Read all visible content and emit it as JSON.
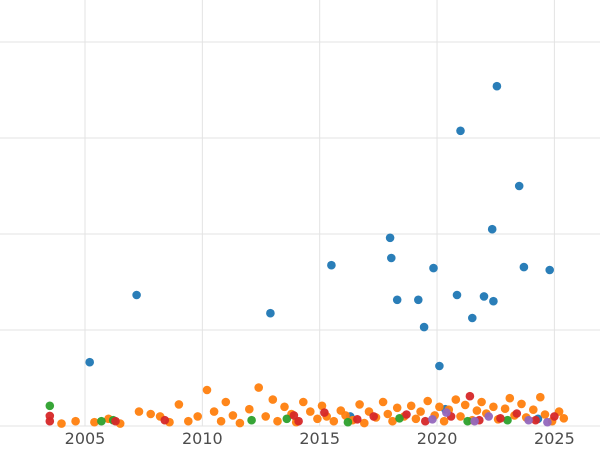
{
  "chart_data": {
    "type": "scatter",
    "title": "",
    "xlabel": "",
    "ylabel": "",
    "grid": true,
    "legend": "none",
    "x_axis": {
      "ticks": [
        2005,
        2010,
        2015,
        2020,
        2025
      ],
      "tick_labels": [
        "2005",
        "2010",
        "2015",
        "2020",
        "2025"
      ],
      "range": [
        2003.2,
        2026.2
      ]
    },
    "y_axis": {
      "gridline_values": [
        0,
        20,
        40,
        60,
        80
      ],
      "tick_labels": [],
      "range": [
        0,
        88
      ],
      "note": "y tick labels are cropped out of the visible image"
    },
    "series": [
      {
        "name": "series-blue",
        "color": "#1f77b4",
        "points": [
          [
            2005.2,
            13.3
          ],
          [
            2007.2,
            27.3
          ],
          [
            2012.9,
            23.5
          ],
          [
            2015.5,
            33.5
          ],
          [
            2016.3,
            2.0
          ],
          [
            2018.0,
            39.2
          ],
          [
            2018.05,
            35.0
          ],
          [
            2018.3,
            26.3
          ],
          [
            2019.2,
            26.3
          ],
          [
            2019.45,
            20.6
          ],
          [
            2019.85,
            32.9
          ],
          [
            2020.1,
            12.5
          ],
          [
            2020.35,
            3.5
          ],
          [
            2020.85,
            27.3
          ],
          [
            2021.0,
            61.5
          ],
          [
            2021.5,
            22.5
          ],
          [
            2022.0,
            27.0
          ],
          [
            2022.35,
            41.0
          ],
          [
            2022.4,
            26.0
          ],
          [
            2022.55,
            70.8
          ],
          [
            2023.5,
            50.0
          ],
          [
            2023.7,
            33.1
          ],
          [
            2024.3,
            1.5
          ],
          [
            2024.8,
            32.5
          ]
        ]
      },
      {
        "name": "series-orange",
        "color": "#ff7f0e",
        "points": [
          [
            2004.0,
            0.5
          ],
          [
            2004.6,
            1.0
          ],
          [
            2005.4,
            0.8
          ],
          [
            2006.0,
            1.5
          ],
          [
            2006.5,
            0.5
          ],
          [
            2007.3,
            3.0
          ],
          [
            2007.8,
            2.5
          ],
          [
            2008.2,
            2.0
          ],
          [
            2008.6,
            0.8
          ],
          [
            2009.0,
            4.5
          ],
          [
            2009.4,
            1.0
          ],
          [
            2009.8,
            2.0
          ],
          [
            2010.2,
            7.5
          ],
          [
            2010.5,
            3.0
          ],
          [
            2010.8,
            1.0
          ],
          [
            2011.0,
            5.0
          ],
          [
            2011.3,
            2.2
          ],
          [
            2011.6,
            0.6
          ],
          [
            2012.0,
            3.5
          ],
          [
            2012.4,
            8.0
          ],
          [
            2012.7,
            2.0
          ],
          [
            2013.0,
            5.5
          ],
          [
            2013.2,
            1.0
          ],
          [
            2013.5,
            4.0
          ],
          [
            2013.8,
            2.5
          ],
          [
            2014.0,
            0.8
          ],
          [
            2014.3,
            5.0
          ],
          [
            2014.6,
            3.0
          ],
          [
            2014.9,
            1.5
          ],
          [
            2015.1,
            4.2
          ],
          [
            2015.3,
            2.0
          ],
          [
            2015.6,
            1.0
          ],
          [
            2015.9,
            3.2
          ],
          [
            2016.1,
            2.2
          ],
          [
            2016.4,
            1.2
          ],
          [
            2016.7,
            4.5
          ],
          [
            2016.9,
            0.6
          ],
          [
            2017.1,
            3.0
          ],
          [
            2017.4,
            1.8
          ],
          [
            2017.7,
            5.0
          ],
          [
            2017.9,
            2.5
          ],
          [
            2018.1,
            1.0
          ],
          [
            2018.3,
            3.8
          ],
          [
            2018.6,
            2.0
          ],
          [
            2018.9,
            4.2
          ],
          [
            2019.1,
            1.5
          ],
          [
            2019.3,
            3.0
          ],
          [
            2019.6,
            5.2
          ],
          [
            2019.9,
            2.2
          ],
          [
            2020.1,
            4.0
          ],
          [
            2020.3,
            1.0
          ],
          [
            2020.5,
            3.4
          ],
          [
            2020.8,
            5.5
          ],
          [
            2021.0,
            2.0
          ],
          [
            2021.2,
            4.4
          ],
          [
            2021.5,
            1.2
          ],
          [
            2021.7,
            3.2
          ],
          [
            2021.9,
            5.0
          ],
          [
            2022.1,
            2.6
          ],
          [
            2022.4,
            4.0
          ],
          [
            2022.6,
            1.4
          ],
          [
            2022.9,
            3.6
          ],
          [
            2023.1,
            5.8
          ],
          [
            2023.3,
            2.2
          ],
          [
            2023.6,
            4.6
          ],
          [
            2023.8,
            1.8
          ],
          [
            2024.1,
            3.4
          ],
          [
            2024.4,
            6.0
          ],
          [
            2024.6,
            2.4
          ],
          [
            2024.9,
            1.0
          ],
          [
            2025.2,
            3.0
          ],
          [
            2025.4,
            1.6
          ]
        ]
      },
      {
        "name": "series-green",
        "color": "#2ca02c",
        "points": [
          [
            2003.5,
            4.2
          ],
          [
            2005.7,
            1.0
          ],
          [
            2006.2,
            1.2
          ],
          [
            2012.1,
            1.2
          ],
          [
            2013.6,
            1.5
          ],
          [
            2016.2,
            0.8
          ],
          [
            2018.4,
            1.6
          ],
          [
            2021.3,
            1.0
          ],
          [
            2023.0,
            1.2
          ]
        ]
      },
      {
        "name": "series-red",
        "color": "#d62728",
        "points": [
          [
            2003.5,
            1.0
          ],
          [
            2003.5,
            2.1
          ],
          [
            2006.3,
            1.0
          ],
          [
            2008.4,
            1.2
          ],
          [
            2013.9,
            2.2
          ],
          [
            2014.1,
            1.0
          ],
          [
            2015.2,
            2.8
          ],
          [
            2016.6,
            1.4
          ],
          [
            2017.3,
            2.0
          ],
          [
            2018.7,
            2.4
          ],
          [
            2019.5,
            1.0
          ],
          [
            2020.6,
            2.0
          ],
          [
            2021.4,
            6.2
          ],
          [
            2021.8,
            1.2
          ],
          [
            2022.7,
            1.6
          ],
          [
            2023.4,
            2.6
          ],
          [
            2024.2,
            1.2
          ],
          [
            2025.0,
            2.0
          ]
        ]
      },
      {
        "name": "series-purple",
        "color": "#9467bd",
        "points": [
          [
            2019.8,
            1.4
          ],
          [
            2020.4,
            2.8
          ],
          [
            2021.6,
            1.0
          ],
          [
            2022.2,
            2.0
          ],
          [
            2023.9,
            1.2
          ],
          [
            2024.7,
            0.8
          ]
        ]
      }
    ],
    "style": {
      "background_color": "#ffffff",
      "gridline_color": "#e3e3e3",
      "tick_label_color": "#4d4d4d",
      "point_radius_px": 4.3
    }
  }
}
